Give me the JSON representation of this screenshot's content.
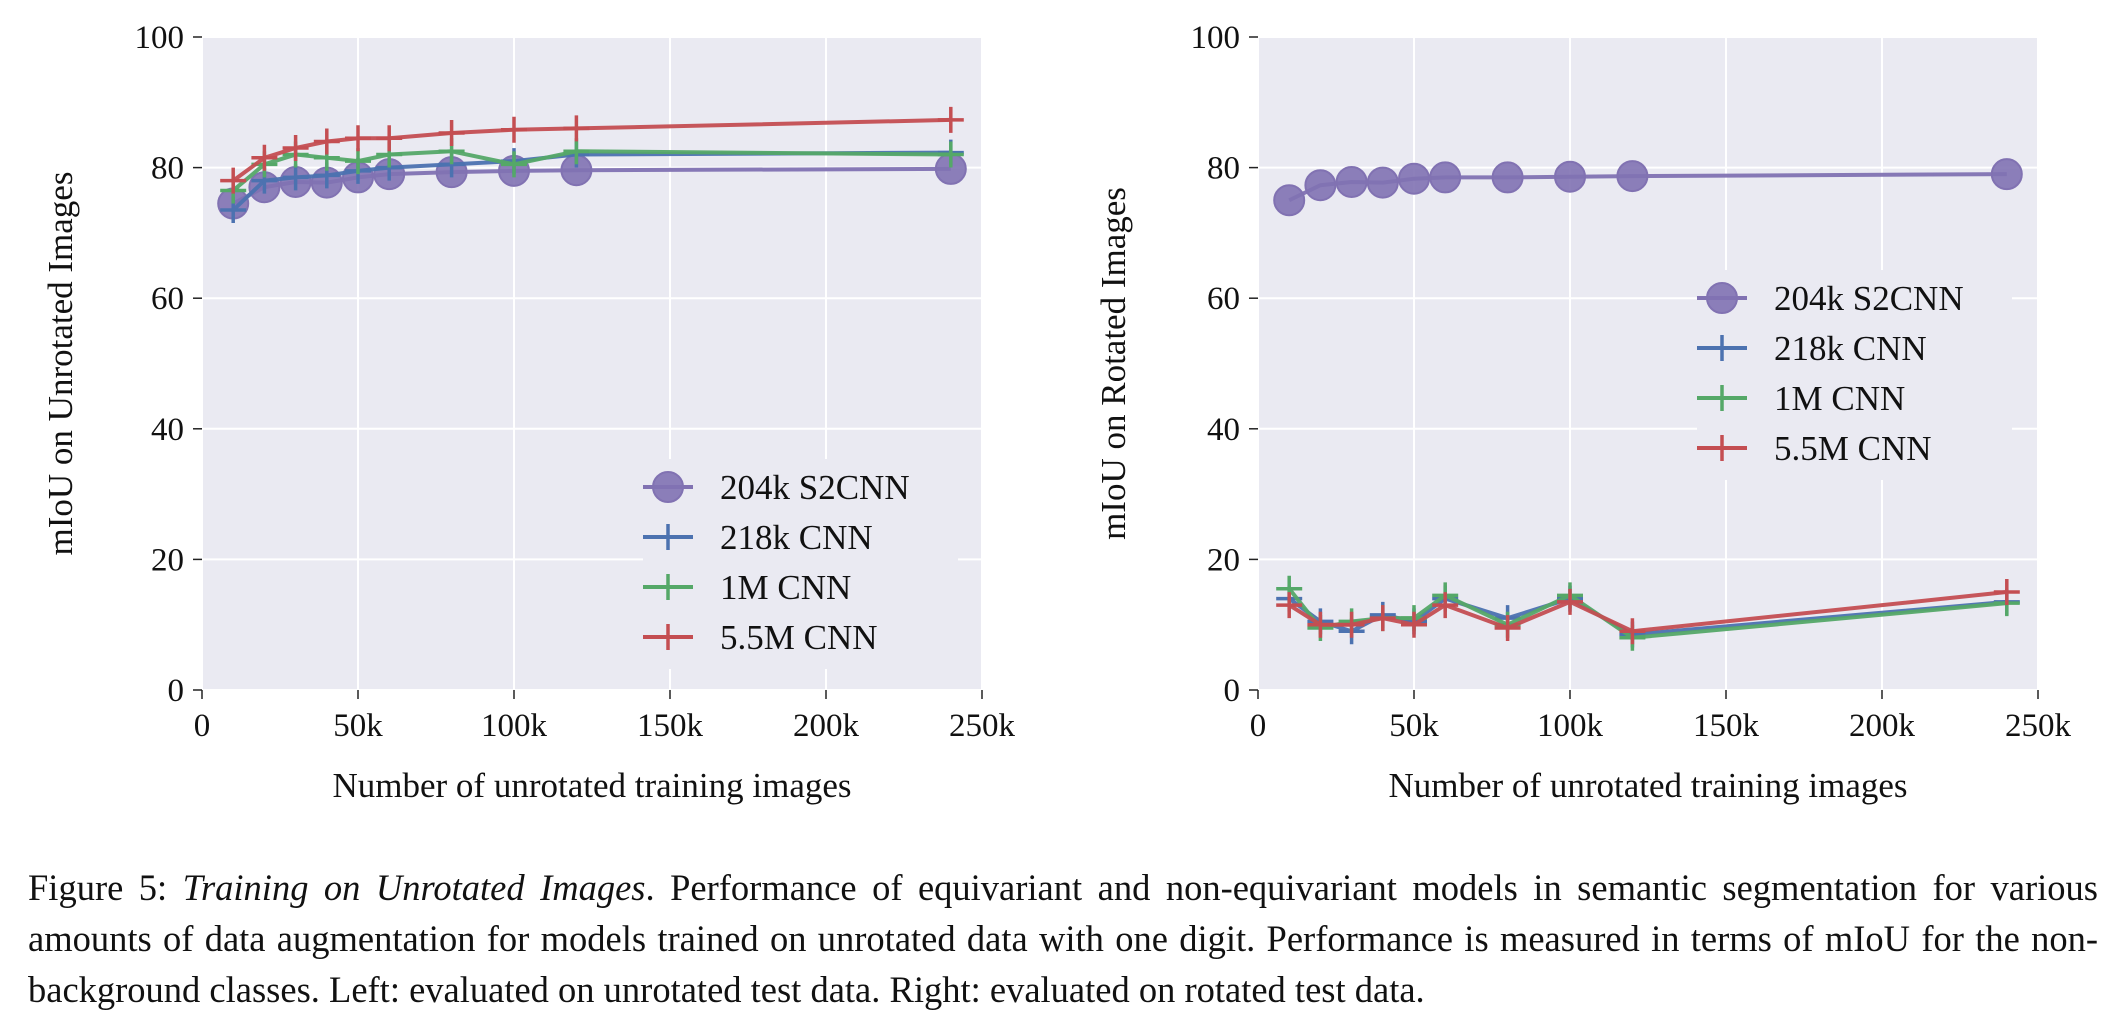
{
  "chart_data": [
    {
      "type": "line",
      "xlabel": "Number of unrotated training images",
      "ylabel": "mIoU on Unrotated Images",
      "xlim": [
        0,
        250000
      ],
      "ylim": [
        0,
        100
      ],
      "xticks": [
        0,
        50000,
        100000,
        150000,
        200000,
        250000
      ],
      "xtick_labels": [
        "0",
        "50k",
        "100k",
        "150k",
        "200k",
        "250k"
      ],
      "yticks": [
        0,
        20,
        40,
        60,
        80,
        100
      ],
      "ytick_labels": [
        "0",
        "20",
        "40",
        "60",
        "80",
        "100"
      ],
      "grid": true,
      "legend_position": "lower-right",
      "series": [
        {
          "name": "204k S2CNN",
          "marker": "circle",
          "color": "#8172b2",
          "x": [
            10000,
            20000,
            30000,
            40000,
            50000,
            60000,
            80000,
            100000,
            120000,
            240000
          ],
          "y": [
            74.5,
            77,
            77.8,
            77.7,
            78.5,
            79,
            79.3,
            79.5,
            79.6,
            79.8
          ]
        },
        {
          "name": "218k CNN",
          "marker": "plus",
          "color": "#4c72b0",
          "x": [
            10000,
            20000,
            30000,
            40000,
            50000,
            60000,
            80000,
            100000,
            120000,
            240000
          ],
          "y": [
            73.5,
            78,
            78.5,
            78.8,
            79.5,
            80,
            80.5,
            81,
            82,
            82.3
          ]
        },
        {
          "name": "1M CNN",
          "marker": "plus",
          "color": "#55a868",
          "x": [
            10000,
            20000,
            30000,
            40000,
            50000,
            60000,
            80000,
            100000,
            120000,
            240000
          ],
          "y": [
            76.5,
            80.5,
            82,
            81.5,
            81,
            82,
            82.5,
            80.5,
            82.5,
            82
          ]
        },
        {
          "name": "5.5M CNN",
          "marker": "plus",
          "color": "#c44e52",
          "x": [
            10000,
            20000,
            30000,
            40000,
            50000,
            60000,
            80000,
            100000,
            120000,
            240000
          ],
          "y": [
            78,
            81.5,
            83,
            84,
            84.5,
            84.5,
            85.3,
            85.8,
            86,
            87.3
          ]
        }
      ]
    },
    {
      "type": "line",
      "xlabel": "Number of unrotated training images",
      "ylabel": "mIoU on Rotated Images",
      "xlim": [
        0,
        250000
      ],
      "ylim": [
        0,
        100
      ],
      "xticks": [
        0,
        50000,
        100000,
        150000,
        200000,
        250000
      ],
      "xtick_labels": [
        "0",
        "50k",
        "100k",
        "150k",
        "200k",
        "250k"
      ],
      "yticks": [
        0,
        20,
        40,
        60,
        80,
        100
      ],
      "ytick_labels": [
        "0",
        "20",
        "40",
        "60",
        "80",
        "100"
      ],
      "grid": true,
      "legend_position": "center-right",
      "series": [
        {
          "name": "204k S2CNN",
          "marker": "circle",
          "color": "#8172b2",
          "x": [
            10000,
            20000,
            30000,
            40000,
            50000,
            60000,
            80000,
            100000,
            120000,
            240000
          ],
          "y": [
            75,
            77.3,
            77.8,
            77.7,
            78.3,
            78.5,
            78.5,
            78.6,
            78.7,
            79
          ]
        },
        {
          "name": "218k CNN",
          "marker": "plus",
          "color": "#4c72b0",
          "x": [
            10000,
            20000,
            30000,
            40000,
            50000,
            60000,
            80000,
            100000,
            120000,
            240000
          ],
          "y": [
            14,
            10.5,
            9,
            11.5,
            10.5,
            14,
            11,
            14,
            8.5,
            13.5
          ]
        },
        {
          "name": "1M CNN",
          "marker": "plus",
          "color": "#55a868",
          "x": [
            10000,
            20000,
            30000,
            40000,
            50000,
            60000,
            80000,
            100000,
            120000,
            240000
          ],
          "y": [
            15.5,
            9.5,
            10.5,
            11,
            11,
            14.5,
            10,
            14.5,
            8,
            13.3
          ]
        },
        {
          "name": "5.5M CNN",
          "marker": "plus",
          "color": "#c44e52",
          "x": [
            10000,
            20000,
            30000,
            40000,
            50000,
            60000,
            80000,
            100000,
            120000,
            240000
          ],
          "y": [
            13,
            10,
            10,
            11,
            10,
            13,
            9.5,
            13.5,
            9,
            15
          ]
        }
      ]
    }
  ],
  "caption": {
    "prefix": "Figure 5: ",
    "title": "Training on Unrotated Images",
    "body": ". Performance of equivariant and non-equivariant models in semantic segmentation for various amounts of data augmentation for models trained on unrotated data with one digit. Performance is measured in terms of mIoU for the non-background classes. Left: evaluated on unrotated test data. Right: evaluated on rotated test data."
  },
  "colors": {
    "plot_background": "#eaeaf2",
    "grid": "#ffffff"
  }
}
